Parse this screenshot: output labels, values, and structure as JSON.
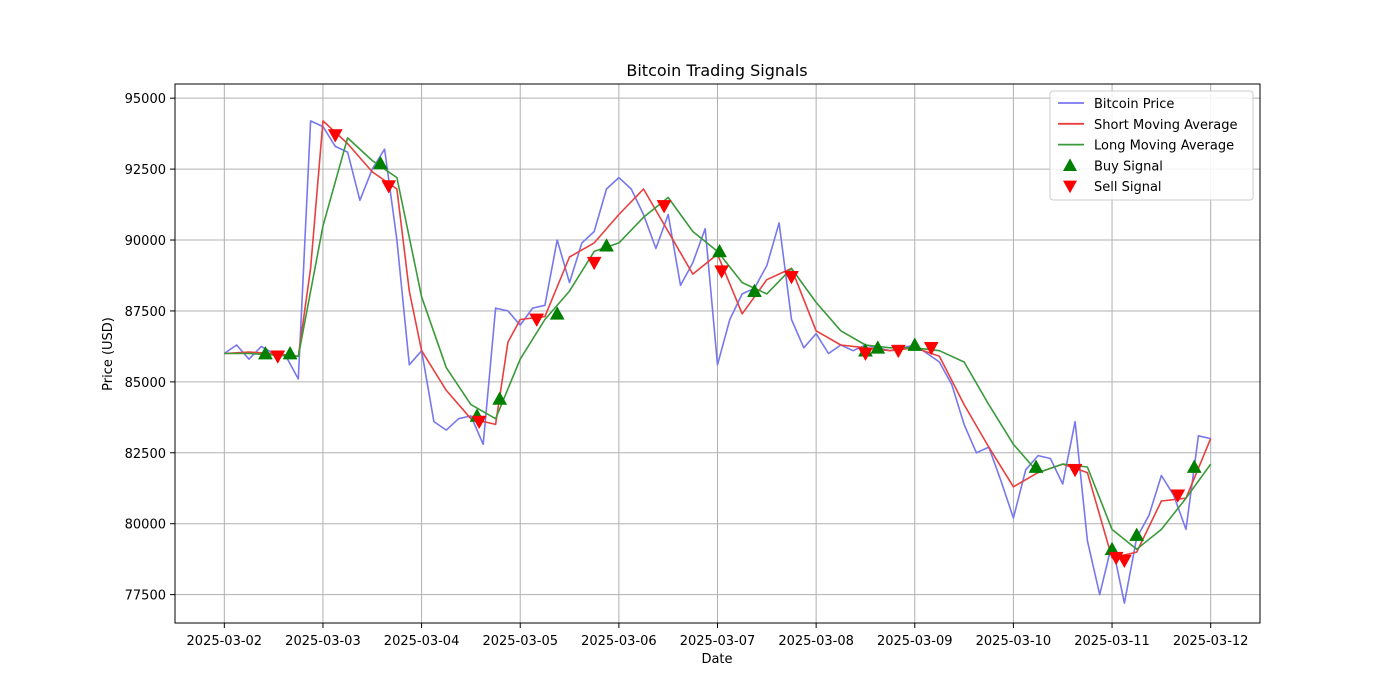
{
  "chart_data": {
    "type": "line",
    "title": "Bitcoin Trading Signals",
    "xlabel": "Date",
    "ylabel": "Price (USD)",
    "x_domain": [
      "2025-03-01T12:00",
      "2025-03-12T12:00"
    ],
    "ylim": [
      76500,
      95500
    ],
    "x_ticks": [
      "2025-03-02",
      "2025-03-03",
      "2025-03-04",
      "2025-03-05",
      "2025-03-06",
      "2025-03-07",
      "2025-03-08",
      "2025-03-09",
      "2025-03-10",
      "2025-03-11",
      "2025-03-12"
    ],
    "y_ticks": [
      77500,
      80000,
      82500,
      85000,
      87500,
      90000,
      92500,
      95000
    ],
    "y_tick_labels": [
      "77500",
      "80000",
      "82500",
      "85000",
      "87500",
      "90000",
      "92500",
      "95000"
    ],
    "grid": true,
    "legend_position": "top-right",
    "series": [
      {
        "name": "Bitcoin Price",
        "color": "#7777ee",
        "points": [
          [
            "2025-03-02T00:00",
            86000
          ],
          [
            "2025-03-02T03:00",
            86300
          ],
          [
            "2025-03-02T06:00",
            85800
          ],
          [
            "2025-03-02T09:00",
            86250
          ],
          [
            "2025-03-02T12:00",
            86000
          ],
          [
            "2025-03-02T15:00",
            85900
          ],
          [
            "2025-03-02T18:00",
            85100
          ],
          [
            "2025-03-02T21:00",
            94200
          ],
          [
            "2025-03-03T00:00",
            94000
          ],
          [
            "2025-03-03T03:00",
            93300
          ],
          [
            "2025-03-03T06:00",
            93100
          ],
          [
            "2025-03-03T09:00",
            91400
          ],
          [
            "2025-03-03T12:00",
            92500
          ],
          [
            "2025-03-03T15:00",
            93200
          ],
          [
            "2025-03-03T18:00",
            90000
          ],
          [
            "2025-03-03T21:00",
            85600
          ],
          [
            "2025-03-04T00:00",
            86100
          ],
          [
            "2025-03-04T03:00",
            83600
          ],
          [
            "2025-03-04T06:00",
            83300
          ],
          [
            "2025-03-04T09:00",
            83700
          ],
          [
            "2025-03-04T12:00",
            83800
          ],
          [
            "2025-03-04T15:00",
            82800
          ],
          [
            "2025-03-04T18:00",
            87600
          ],
          [
            "2025-03-04T21:00",
            87500
          ],
          [
            "2025-03-05T00:00",
            87000
          ],
          [
            "2025-03-05T03:00",
            87600
          ],
          [
            "2025-03-05T06:00",
            87700
          ],
          [
            "2025-03-05T09:00",
            90000
          ],
          [
            "2025-03-05T12:00",
            88500
          ],
          [
            "2025-03-05T15:00",
            89900
          ],
          [
            "2025-03-05T18:00",
            90300
          ],
          [
            "2025-03-05T21:00",
            91800
          ],
          [
            "2025-03-06T00:00",
            92200
          ],
          [
            "2025-03-06T03:00",
            91800
          ],
          [
            "2025-03-06T06:00",
            90900
          ],
          [
            "2025-03-06T09:00",
            89700
          ],
          [
            "2025-03-06T12:00",
            90900
          ],
          [
            "2025-03-06T15:00",
            88400
          ],
          [
            "2025-03-06T18:00",
            89200
          ],
          [
            "2025-03-06T21:00",
            90400
          ],
          [
            "2025-03-07T00:00",
            85600
          ],
          [
            "2025-03-07T03:00",
            87200
          ],
          [
            "2025-03-07T06:00",
            88100
          ],
          [
            "2025-03-07T09:00",
            88300
          ],
          [
            "2025-03-07T12:00",
            89100
          ],
          [
            "2025-03-07T15:00",
            90600
          ],
          [
            "2025-03-07T18:00",
            87200
          ],
          [
            "2025-03-07T21:00",
            86200
          ],
          [
            "2025-03-08T00:00",
            86700
          ],
          [
            "2025-03-08T03:00",
            86000
          ],
          [
            "2025-03-08T06:00",
            86300
          ],
          [
            "2025-03-08T09:00",
            86100
          ],
          [
            "2025-03-08T12:00",
            86300
          ],
          [
            "2025-03-08T15:00",
            86200
          ],
          [
            "2025-03-08T18:00",
            86100
          ],
          [
            "2025-03-08T21:00",
            86200
          ],
          [
            "2025-03-09T00:00",
            86300
          ],
          [
            "2025-03-09T03:00",
            86000
          ],
          [
            "2025-03-09T06:00",
            85700
          ],
          [
            "2025-03-09T09:00",
            84900
          ],
          [
            "2025-03-09T12:00",
            83500
          ],
          [
            "2025-03-09T15:00",
            82500
          ],
          [
            "2025-03-09T18:00",
            82700
          ],
          [
            "2025-03-09T21:00",
            81500
          ],
          [
            "2025-03-10T00:00",
            80200
          ],
          [
            "2025-03-10T03:00",
            81900
          ],
          [
            "2025-03-10T06:00",
            82400
          ],
          [
            "2025-03-10T09:00",
            82300
          ],
          [
            "2025-03-10T12:00",
            81400
          ],
          [
            "2025-03-10T15:00",
            83600
          ],
          [
            "2025-03-10T18:00",
            79400
          ],
          [
            "2025-03-10T21:00",
            77500
          ],
          [
            "2025-03-11T00:00",
            79300
          ],
          [
            "2025-03-11T03:00",
            77200
          ],
          [
            "2025-03-11T06:00",
            79500
          ],
          [
            "2025-03-11T09:00",
            80300
          ],
          [
            "2025-03-11T12:00",
            81700
          ],
          [
            "2025-03-11T15:00",
            81000
          ],
          [
            "2025-03-11T18:00",
            79800
          ],
          [
            "2025-03-11T21:00",
            83100
          ],
          [
            "2025-03-12T00:00",
            83000
          ]
        ]
      },
      {
        "name": "Short Moving Average",
        "color": "#e83f3f",
        "points": [
          [
            "2025-03-02T00:00",
            86000
          ],
          [
            "2025-03-02T06:00",
            86050
          ],
          [
            "2025-03-02T12:00",
            86000
          ],
          [
            "2025-03-02T18:00",
            85900
          ],
          [
            "2025-03-02T21:00",
            89000
          ],
          [
            "2025-03-03T00:00",
            94200
          ],
          [
            "2025-03-03T06:00",
            93400
          ],
          [
            "2025-03-03T12:00",
            92400
          ],
          [
            "2025-03-03T18:00",
            91800
          ],
          [
            "2025-03-03T21:00",
            88200
          ],
          [
            "2025-03-04T00:00",
            86100
          ],
          [
            "2025-03-04T06:00",
            84700
          ],
          [
            "2025-03-04T12:00",
            83700
          ],
          [
            "2025-03-04T18:00",
            83500
          ],
          [
            "2025-03-04T21:00",
            86400
          ],
          [
            "2025-03-05T00:00",
            87200
          ],
          [
            "2025-03-05T06:00",
            87300
          ],
          [
            "2025-03-05T12:00",
            89400
          ],
          [
            "2025-03-05T18:00",
            89900
          ],
          [
            "2025-03-06T00:00",
            90900
          ],
          [
            "2025-03-06T06:00",
            91800
          ],
          [
            "2025-03-06T12:00",
            90300
          ],
          [
            "2025-03-06T18:00",
            88800
          ],
          [
            "2025-03-07T00:00",
            89500
          ],
          [
            "2025-03-07T06:00",
            87400
          ],
          [
            "2025-03-07T12:00",
            88600
          ],
          [
            "2025-03-07T18:00",
            89000
          ],
          [
            "2025-03-08T00:00",
            86800
          ],
          [
            "2025-03-08T06:00",
            86300
          ],
          [
            "2025-03-08T12:00",
            86200
          ],
          [
            "2025-03-08T18:00",
            86100
          ],
          [
            "2025-03-09T00:00",
            86200
          ],
          [
            "2025-03-09T06:00",
            85900
          ],
          [
            "2025-03-09T12:00",
            84200
          ],
          [
            "2025-03-09T18:00",
            82700
          ],
          [
            "2025-03-10T00:00",
            81300
          ],
          [
            "2025-03-10T06:00",
            81800
          ],
          [
            "2025-03-10T12:00",
            82100
          ],
          [
            "2025-03-10T18:00",
            81800
          ],
          [
            "2025-03-11T00:00",
            78800
          ],
          [
            "2025-03-11T06:00",
            79000
          ],
          [
            "2025-03-11T12:00",
            80800
          ],
          [
            "2025-03-11T18:00",
            80900
          ],
          [
            "2025-03-12T00:00",
            83000
          ]
        ]
      },
      {
        "name": "Long Moving Average",
        "color": "#3a9a3a",
        "points": [
          [
            "2025-03-02T00:00",
            86000
          ],
          [
            "2025-03-02T06:00",
            86000
          ],
          [
            "2025-03-02T12:00",
            85950
          ],
          [
            "2025-03-02T18:00",
            85900
          ],
          [
            "2025-03-03T00:00",
            90500
          ],
          [
            "2025-03-03T06:00",
            93600
          ],
          [
            "2025-03-03T12:00",
            92800
          ],
          [
            "2025-03-03T18:00",
            92200
          ],
          [
            "2025-03-04T00:00",
            88000
          ],
          [
            "2025-03-04T06:00",
            85500
          ],
          [
            "2025-03-04T12:00",
            84200
          ],
          [
            "2025-03-04T18:00",
            83700
          ],
          [
            "2025-03-05T00:00",
            85800
          ],
          [
            "2025-03-05T06:00",
            87200
          ],
          [
            "2025-03-05T12:00",
            88200
          ],
          [
            "2025-03-05T18:00",
            89600
          ],
          [
            "2025-03-06T00:00",
            89900
          ],
          [
            "2025-03-06T06:00",
            90800
          ],
          [
            "2025-03-06T12:00",
            91500
          ],
          [
            "2025-03-06T18:00",
            90300
          ],
          [
            "2025-03-07T00:00",
            89600
          ],
          [
            "2025-03-07T06:00",
            88500
          ],
          [
            "2025-03-07T12:00",
            88100
          ],
          [
            "2025-03-07T18:00",
            89000
          ],
          [
            "2025-03-08T00:00",
            87800
          ],
          [
            "2025-03-08T06:00",
            86800
          ],
          [
            "2025-03-08T12:00",
            86300
          ],
          [
            "2025-03-08T18:00",
            86200
          ],
          [
            "2025-03-09T00:00",
            86200
          ],
          [
            "2025-03-09T06:00",
            86100
          ],
          [
            "2025-03-09T12:00",
            85700
          ],
          [
            "2025-03-09T18:00",
            84200
          ],
          [
            "2025-03-10T00:00",
            82800
          ],
          [
            "2025-03-10T06:00",
            81800
          ],
          [
            "2025-03-10T12:00",
            82100
          ],
          [
            "2025-03-10T18:00",
            82000
          ],
          [
            "2025-03-11T00:00",
            79800
          ],
          [
            "2025-03-11T06:00",
            79100
          ],
          [
            "2025-03-11T12:00",
            79800
          ],
          [
            "2025-03-11T18:00",
            80900
          ],
          [
            "2025-03-12T00:00",
            82100
          ]
        ]
      }
    ],
    "markers": [
      {
        "name": "Buy Signal",
        "color": "#008000",
        "shape": "triangle-up",
        "points": [
          [
            "2025-03-02T10:00",
            86000
          ],
          [
            "2025-03-02T16:00",
            86000
          ],
          [
            "2025-03-03T14:00",
            92700
          ],
          [
            "2025-03-04T13:30",
            83800
          ],
          [
            "2025-03-04T19:00",
            84400
          ],
          [
            "2025-03-05T09:00",
            87400
          ],
          [
            "2025-03-05T21:00",
            89800
          ],
          [
            "2025-03-07T00:30",
            89600
          ],
          [
            "2025-03-07T09:00",
            88200
          ],
          [
            "2025-03-08T12:00",
            86100
          ],
          [
            "2025-03-08T15:00",
            86200
          ],
          [
            "2025-03-09T00:00",
            86300
          ],
          [
            "2025-03-10T05:30",
            82000
          ],
          [
            "2025-03-11T00:00",
            79100
          ],
          [
            "2025-03-11T06:00",
            79600
          ],
          [
            "2025-03-11T20:00",
            82000
          ]
        ]
      },
      {
        "name": "Sell Signal",
        "color": "#ff0000",
        "shape": "triangle-down",
        "points": [
          [
            "2025-03-02T13:00",
            85900
          ],
          [
            "2025-03-03T03:00",
            93700
          ],
          [
            "2025-03-03T16:00",
            91900
          ],
          [
            "2025-03-04T14:00",
            83600
          ],
          [
            "2025-03-05T04:00",
            87200
          ],
          [
            "2025-03-05T18:00",
            89200
          ],
          [
            "2025-03-06T11:00",
            91200
          ],
          [
            "2025-03-07T01:00",
            88900
          ],
          [
            "2025-03-07T18:00",
            88700
          ],
          [
            "2025-03-08T12:00",
            86000
          ],
          [
            "2025-03-08T20:00",
            86100
          ],
          [
            "2025-03-09T04:00",
            86200
          ],
          [
            "2025-03-10T15:00",
            81900
          ],
          [
            "2025-03-11T01:00",
            78800
          ],
          [
            "2025-03-11T03:00",
            78700
          ],
          [
            "2025-03-11T16:00",
            81000
          ]
        ]
      }
    ]
  }
}
